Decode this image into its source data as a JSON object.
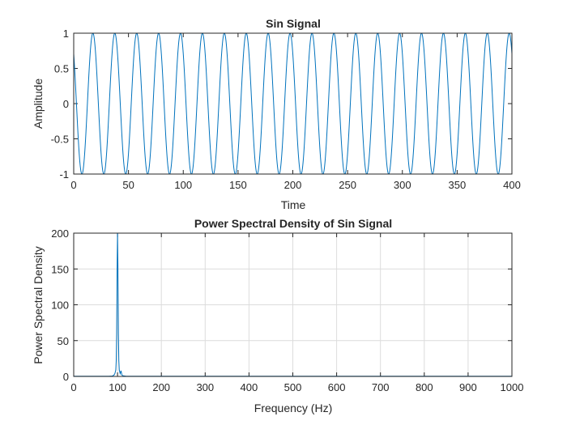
{
  "chart_data": [
    {
      "type": "line",
      "title": "Sin Signal",
      "xlabel": "Time",
      "ylabel": "Amplitude",
      "xlim": [
        0,
        400
      ],
      "ylim": [
        -1,
        1
      ],
      "xticks": [
        0,
        50,
        100,
        150,
        200,
        250,
        300,
        350,
        400
      ],
      "yticks": [
        -1,
        -0.5,
        0,
        0.5,
        1
      ],
      "xtick_labels": [
        "0",
        "50",
        "100",
        "150",
        "200",
        "250",
        "300",
        "350",
        "400"
      ],
      "ytick_labels": [
        "-1",
        "-0.5",
        "0",
        "0.5",
        "1"
      ],
      "grid": false,
      "series": [
        {
          "function": "sin",
          "amplitude": 1,
          "period": 20,
          "phase_deg": 135,
          "color": "#0072BD"
        }
      ]
    },
    {
      "type": "line",
      "title": "Power Spectral Density of Sin Signal",
      "xlabel": "Frequency (Hz)",
      "ylabel": "Power Spectral Density",
      "xlim": [
        0,
        1000
      ],
      "ylim": [
        0,
        200
      ],
      "xticks": [
        0,
        100,
        200,
        300,
        400,
        500,
        600,
        700,
        800,
        900,
        1000
      ],
      "yticks": [
        0,
        50,
        100,
        150,
        200
      ],
      "xtick_labels": [
        "0",
        "100",
        "200",
        "300",
        "400",
        "500",
        "600",
        "700",
        "800",
        "900",
        "1000"
      ],
      "ytick_labels": [
        "0",
        "50",
        "100",
        "150",
        "200"
      ],
      "grid": true,
      "series": [
        {
          "color": "#0072BD",
          "x": [
            0,
            80,
            88,
            90,
            92,
            94,
            96,
            97,
            98,
            99,
            100,
            101,
            102,
            103,
            104,
            106,
            108,
            110,
            112,
            120,
            1000
          ],
          "y": [
            0.3,
            0.3,
            0.6,
            1.2,
            2.0,
            4.0,
            9.0,
            22,
            60,
            150,
            200,
            150,
            60,
            22,
            9,
            4,
            8,
            2,
            1,
            0.3,
            0.3
          ]
        }
      ]
    }
  ]
}
